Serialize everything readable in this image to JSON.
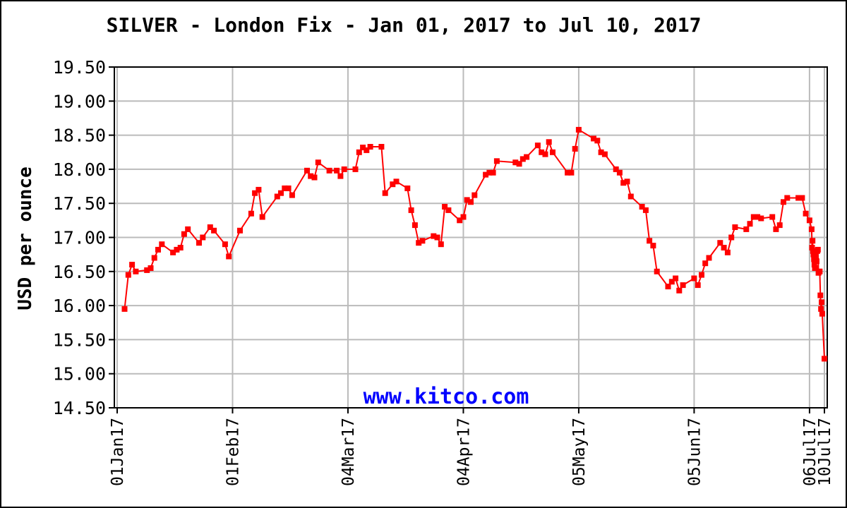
{
  "chart_data": {
    "type": "line",
    "title": "SILVER - London Fix - Jan 01, 2017 to Jul 10, 2017",
    "ylabel": "USD per ounce",
    "xlabel": "",
    "watermark": "www.kitco.com",
    "ylim": [
      14.5,
      19.5
    ],
    "yticks": [
      "14.50",
      "15.00",
      "15.50",
      "16.00",
      "16.50",
      "17.00",
      "17.50",
      "18.00",
      "18.50",
      "19.00",
      "19.50"
    ],
    "xlim": [
      "2017-01-01",
      "2017-07-10"
    ],
    "xticks": [
      {
        "date": "2017-01-01",
        "label": "01Jan17"
      },
      {
        "date": "2017-02-01",
        "label": "01Feb17"
      },
      {
        "date": "2017-03-04",
        "label": "04Mar17"
      },
      {
        "date": "2017-04-04",
        "label": "04Apr17"
      },
      {
        "date": "2017-05-05",
        "label": "05May17"
      },
      {
        "date": "2017-06-05",
        "label": "05Jun17"
      },
      {
        "date": "2017-07-06",
        "label": "06Jul17"
      },
      {
        "date": "2017-07-10",
        "label": "10Jul17"
      }
    ],
    "grid": true,
    "colors": {
      "line": "#ff0000",
      "grid": "#bbbbbb",
      "watermark": "#0000ff"
    },
    "series": [
      {
        "name": "",
        "points": [
          [
            "2017-01-03",
            15.95
          ],
          [
            "2017-01-04",
            16.45
          ],
          [
            "2017-01-05",
            16.6
          ],
          [
            "2017-01-06",
            16.5
          ],
          [
            "2017-01-09",
            16.52
          ],
          [
            "2017-01-10",
            16.55
          ],
          [
            "2017-01-11",
            16.7
          ],
          [
            "2017-01-12",
            16.82
          ],
          [
            "2017-01-13",
            16.9
          ],
          [
            "2017-01-16",
            16.78
          ],
          [
            "2017-01-17",
            16.82
          ],
          [
            "2017-01-18",
            16.85
          ],
          [
            "2017-01-19",
            17.05
          ],
          [
            "2017-01-20",
            17.12
          ],
          [
            "2017-01-23",
            16.92
          ],
          [
            "2017-01-24",
            17.0
          ],
          [
            "2017-01-26",
            17.15
          ],
          [
            "2017-01-27",
            17.1
          ],
          [
            "2017-01-30",
            16.9
          ],
          [
            "2017-01-31",
            16.72
          ],
          [
            "2017-02-03",
            17.1
          ],
          [
            "2017-02-06",
            17.35
          ],
          [
            "2017-02-07",
            17.65
          ],
          [
            "2017-02-08",
            17.7
          ],
          [
            "2017-02-09",
            17.3
          ],
          [
            "2017-02-13",
            17.6
          ],
          [
            "2017-02-14",
            17.65
          ],
          [
            "2017-02-15",
            17.72
          ],
          [
            "2017-02-16",
            17.72
          ],
          [
            "2017-02-17",
            17.62
          ],
          [
            "2017-02-21",
            17.98
          ],
          [
            "2017-02-22",
            17.9
          ],
          [
            "2017-02-23",
            17.88
          ],
          [
            "2017-02-24",
            18.1
          ],
          [
            "2017-02-27",
            17.98
          ],
          [
            "2017-03-01",
            17.98
          ],
          [
            "2017-03-02",
            17.9
          ],
          [
            "2017-03-03",
            18.0
          ],
          [
            "2017-03-06",
            18.0
          ],
          [
            "2017-03-07",
            18.25
          ],
          [
            "2017-03-08",
            18.32
          ],
          [
            "2017-03-09",
            18.28
          ],
          [
            "2017-03-10",
            18.33
          ],
          [
            "2017-03-13",
            18.33
          ],
          [
            "2017-03-14",
            17.65
          ],
          [
            "2017-03-16",
            17.78
          ],
          [
            "2017-03-17",
            17.82
          ],
          [
            "2017-03-20",
            17.72
          ],
          [
            "2017-03-21",
            17.4
          ],
          [
            "2017-03-22",
            17.18
          ],
          [
            "2017-03-23",
            16.92
          ],
          [
            "2017-03-24",
            16.95
          ],
          [
            "2017-03-27",
            17.02
          ],
          [
            "2017-03-28",
            17.0
          ],
          [
            "2017-03-29",
            16.9
          ],
          [
            "2017-03-30",
            17.45
          ],
          [
            "2017-03-31",
            17.4
          ],
          [
            "2017-04-03",
            17.25
          ],
          [
            "2017-04-04",
            17.3
          ],
          [
            "2017-04-05",
            17.55
          ],
          [
            "2017-04-06",
            17.52
          ],
          [
            "2017-04-07",
            17.62
          ],
          [
            "2017-04-10",
            17.92
          ],
          [
            "2017-04-11",
            17.95
          ],
          [
            "2017-04-12",
            17.95
          ],
          [
            "2017-04-13",
            18.12
          ],
          [
            "2017-04-18",
            18.1
          ],
          [
            "2017-04-19",
            18.08
          ],
          [
            "2017-04-20",
            18.15
          ],
          [
            "2017-04-21",
            18.18
          ],
          [
            "2017-04-24",
            18.35
          ],
          [
            "2017-04-25",
            18.25
          ],
          [
            "2017-04-26",
            18.22
          ],
          [
            "2017-04-27",
            18.4
          ],
          [
            "2017-04-28",
            18.25
          ],
          [
            "2017-05-02",
            17.95
          ],
          [
            "2017-05-03",
            17.95
          ],
          [
            "2017-05-04",
            18.3
          ],
          [
            "2017-05-05",
            18.58
          ],
          [
            "2017-05-09",
            18.45
          ],
          [
            "2017-05-10",
            18.42
          ],
          [
            "2017-05-11",
            18.25
          ],
          [
            "2017-05-12",
            18.22
          ],
          [
            "2017-05-15",
            18.0
          ],
          [
            "2017-05-16",
            17.95
          ],
          [
            "2017-05-17",
            17.8
          ],
          [
            "2017-05-18",
            17.82
          ],
          [
            "2017-05-19",
            17.6
          ],
          [
            "2017-05-22",
            17.45
          ],
          [
            "2017-05-23",
            17.4
          ],
          [
            "2017-05-24",
            16.95
          ],
          [
            "2017-05-25",
            16.88
          ],
          [
            "2017-05-26",
            16.5
          ],
          [
            "2017-05-29",
            16.28
          ],
          [
            "2017-05-30",
            16.35
          ],
          [
            "2017-05-31",
            16.4
          ],
          [
            "2017-06-01",
            16.22
          ],
          [
            "2017-06-02",
            16.3
          ],
          [
            "2017-06-05",
            16.4
          ],
          [
            "2017-06-06",
            16.3
          ],
          [
            "2017-06-07",
            16.45
          ],
          [
            "2017-06-08",
            16.62
          ],
          [
            "2017-06-09",
            16.7
          ],
          [
            "2017-06-12",
            16.92
          ],
          [
            "2017-06-13",
            16.85
          ],
          [
            "2017-06-14",
            16.78
          ],
          [
            "2017-06-15",
            17.0
          ],
          [
            "2017-06-16",
            17.15
          ],
          [
            "2017-06-19",
            17.12
          ],
          [
            "2017-06-20",
            17.2
          ],
          [
            "2017-06-21",
            17.3
          ],
          [
            "2017-06-22",
            17.3
          ],
          [
            "2017-06-23",
            17.28
          ],
          [
            "2017-06-26",
            17.3
          ],
          [
            "2017-06-27",
            17.12
          ],
          [
            "2017-06-28",
            17.18
          ],
          [
            "2017-06-29",
            17.52
          ],
          [
            "2017-06-30",
            17.58
          ],
          [
            "2017-07-03",
            17.58
          ],
          [
            "2017-07-04",
            17.58
          ],
          [
            "2017-07-05",
            17.35
          ],
          [
            "2017-07-06",
            17.25
          ],
          [
            "2017-07-07",
            17.12
          ],
          [
            "2017-07-07",
            16.85
          ],
          [
            "2017-07-07",
            16.95
          ],
          [
            "2017-07-07",
            16.8
          ],
          [
            "2017-07-07",
            16.75
          ],
          [
            "2017-07-07",
            16.68
          ],
          [
            "2017-07-07",
            16.6
          ],
          [
            "2017-07-07",
            16.55
          ],
          [
            "2017-07-08",
            16.72
          ],
          [
            "2017-07-08",
            16.55
          ],
          [
            "2017-07-08",
            16.65
          ],
          [
            "2017-07-08",
            16.8
          ],
          [
            "2017-07-08",
            16.82
          ],
          [
            "2017-07-08",
            16.48
          ],
          [
            "2017-07-09",
            16.5
          ],
          [
            "2017-07-09",
            16.5
          ],
          [
            "2017-07-09",
            16.15
          ],
          [
            "2017-07-09",
            15.95
          ],
          [
            "2017-07-09",
            16.05
          ],
          [
            "2017-07-09",
            15.88
          ],
          [
            "2017-07-10",
            15.22
          ]
        ]
      }
    ]
  }
}
